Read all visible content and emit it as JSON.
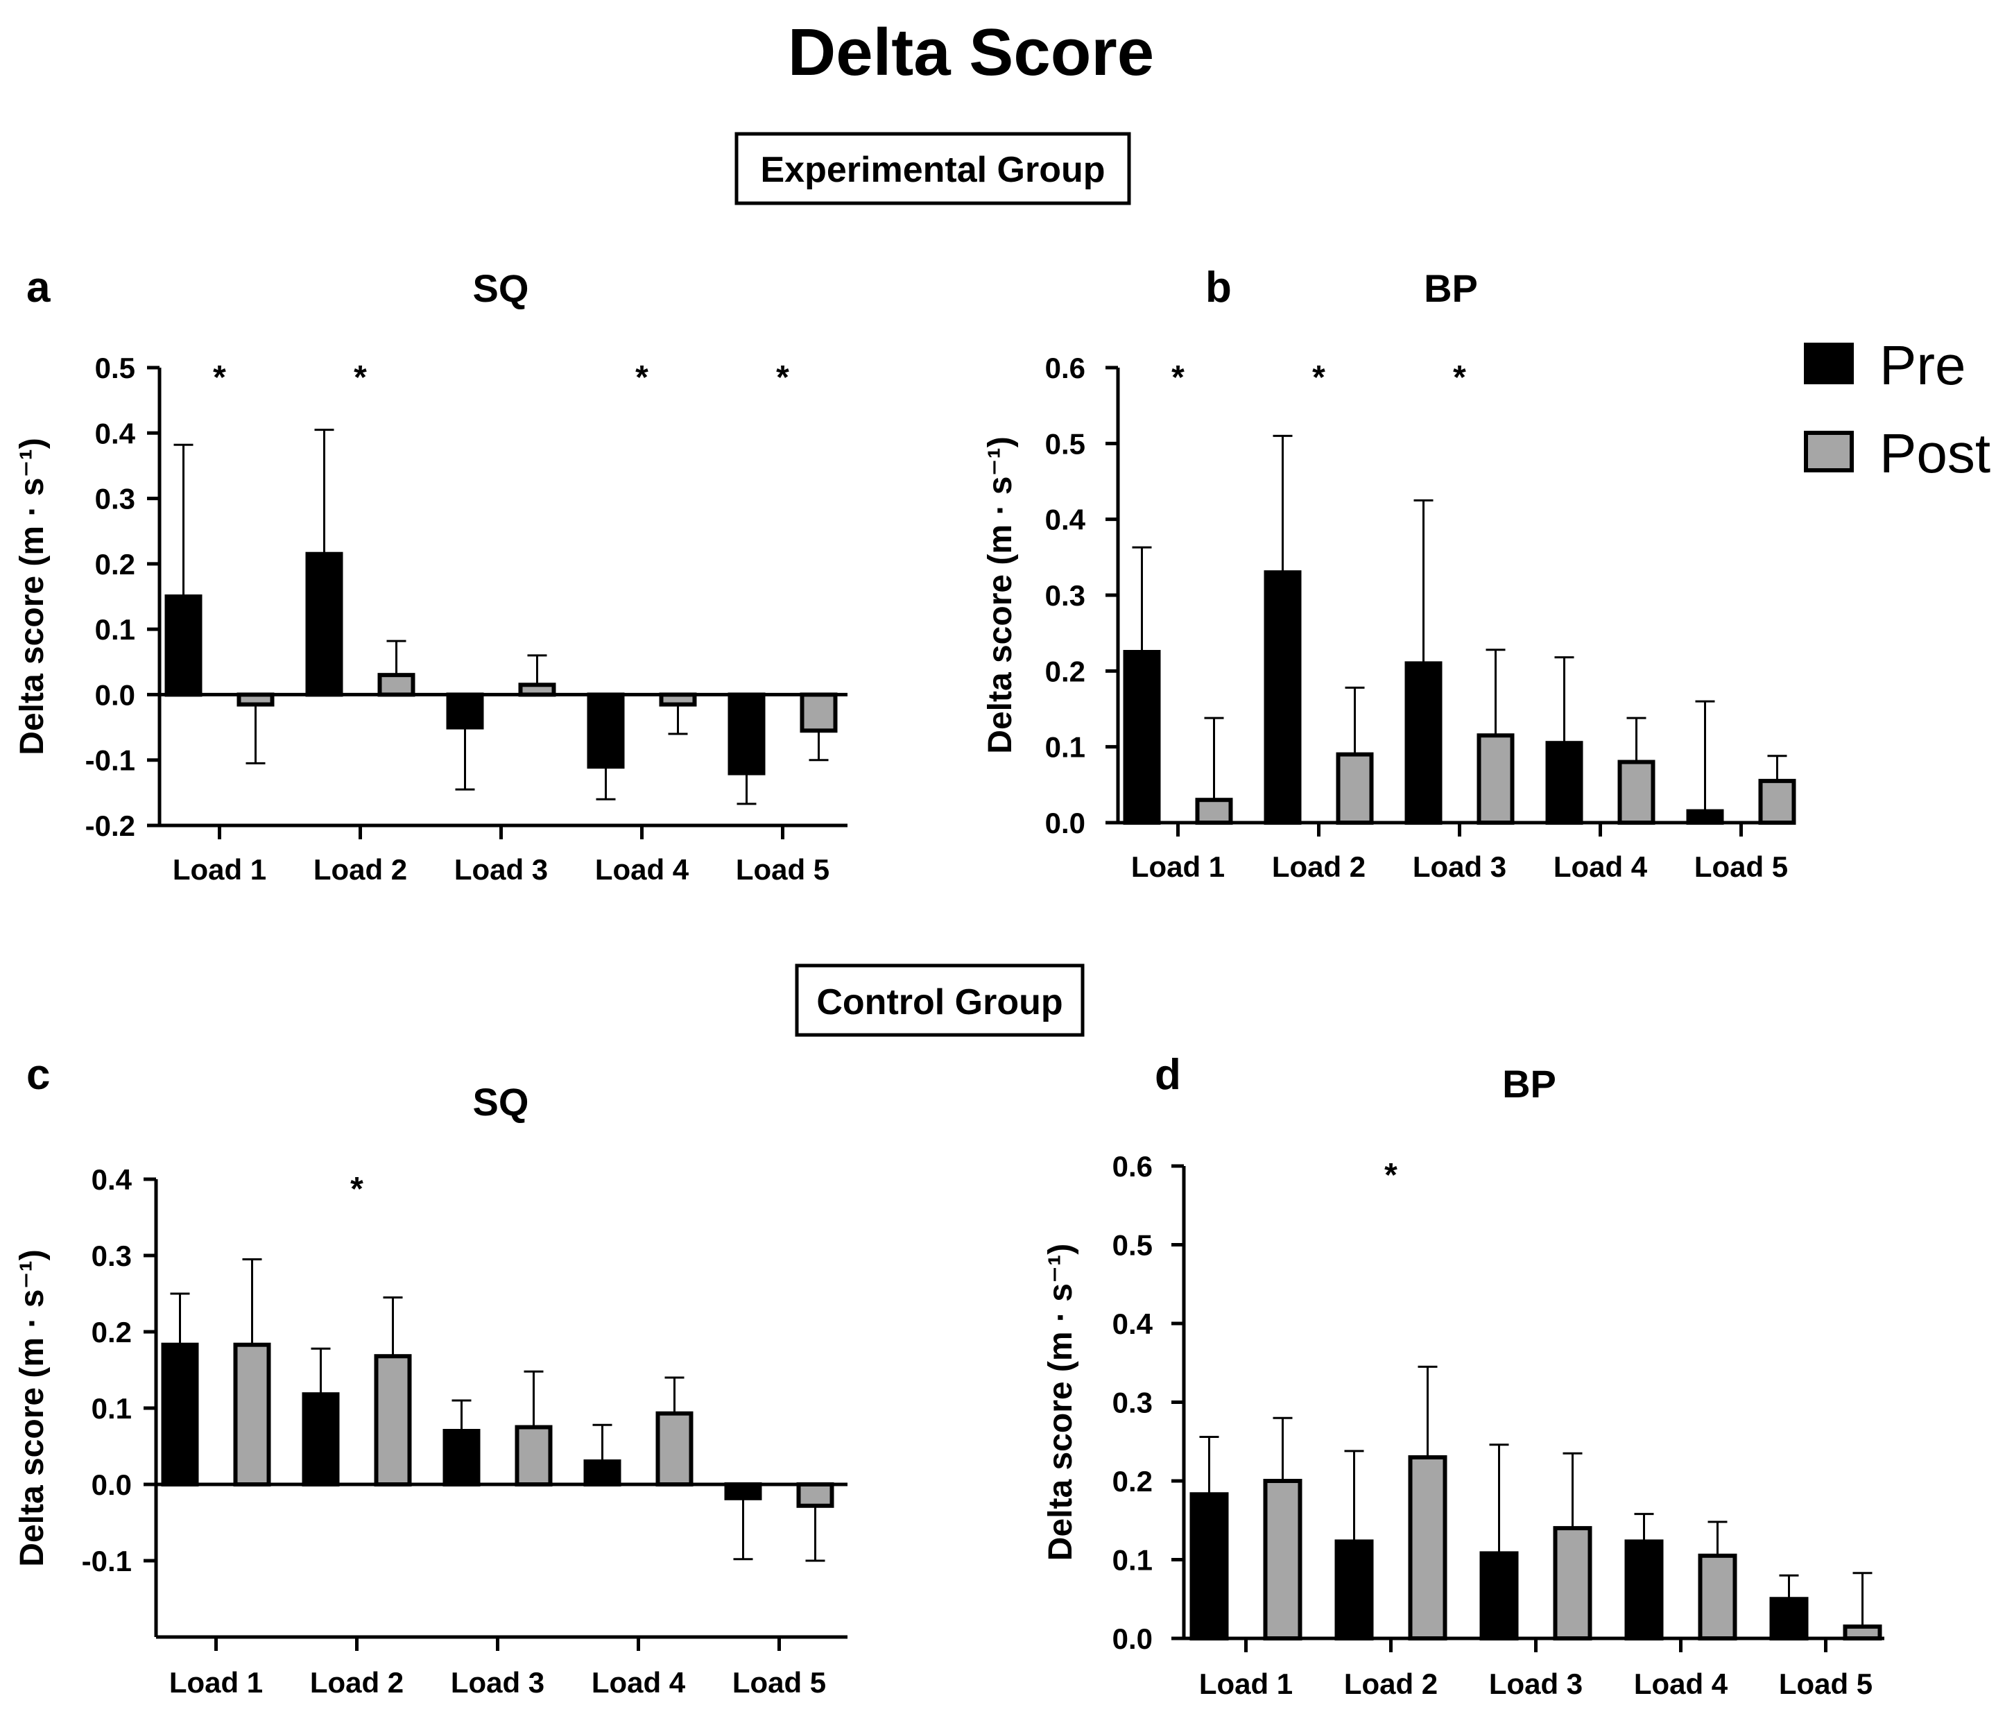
{
  "figure": {
    "title": "Delta Score",
    "group_experimental": "Experimental Group",
    "group_control": "Control Group"
  },
  "legend": [
    {
      "label": "Pre",
      "color": "#000000"
    },
    {
      "label": "Post",
      "color": "#a6a6a6"
    }
  ],
  "colors": {
    "pre": "#000000",
    "post": "#a6a6a6",
    "axis": "#000000"
  },
  "chart_data": [
    {
      "id": "a",
      "letter": "a",
      "type": "bar",
      "title": "SQ",
      "ylabel": "Delta score (m · s⁻¹)",
      "ylim": [
        -0.2,
        0.5
      ],
      "yticks": [
        -0.2,
        -0.1,
        0.0,
        0.1,
        0.2,
        0.3,
        0.4,
        0.5
      ],
      "categories": [
        "Load 1",
        "Load 2",
        "Load 3",
        "Load 4",
        "Load 5"
      ],
      "series": [
        {
          "name": "Pre",
          "values": [
            0.15,
            0.215,
            -0.05,
            -0.11,
            -0.12
          ],
          "errors": [
            0.232,
            0.19,
            0.095,
            0.05,
            0.047
          ]
        },
        {
          "name": "Post",
          "values": [
            -0.015,
            0.03,
            0.015,
            -0.015,
            -0.055
          ],
          "errors": [
            0.09,
            0.052,
            0.045,
            0.045,
            0.045
          ]
        }
      ],
      "significant": [
        true,
        true,
        false,
        true,
        true
      ],
      "marker": "*"
    },
    {
      "id": "b",
      "letter": "b",
      "type": "bar",
      "title": "BP",
      "ylabel": "Delta score (m · s⁻¹)",
      "ylim": [
        0.0,
        0.6
      ],
      "yticks": [
        0.0,
        0.1,
        0.2,
        0.3,
        0.4,
        0.5,
        0.6
      ],
      "categories": [
        "Load 1",
        "Load 2",
        "Load 3",
        "Load 4",
        "Load 5"
      ],
      "series": [
        {
          "name": "Pre",
          "values": [
            0.225,
            0.33,
            0.21,
            0.105,
            0.015
          ],
          "errors": [
            0.138,
            0.18,
            0.215,
            0.113,
            0.145
          ]
        },
        {
          "name": "Post",
          "values": [
            0.03,
            0.09,
            0.115,
            0.08,
            0.055
          ],
          "errors": [
            0.108,
            0.088,
            0.113,
            0.058,
            0.033
          ]
        }
      ],
      "significant": [
        true,
        true,
        true,
        false,
        false
      ],
      "marker": "*"
    },
    {
      "id": "c",
      "letter": "c",
      "type": "bar",
      "title": "SQ",
      "ylabel": "Delta score (m · s⁻¹)",
      "ylim": [
        -0.2,
        0.4
      ],
      "yticks": [
        -0.1,
        0.0,
        0.1,
        0.2,
        0.3,
        0.4
      ],
      "categories": [
        "Load 1",
        "Load 2",
        "Load 3",
        "Load 4",
        "Load 5"
      ],
      "series": [
        {
          "name": "Pre",
          "values": [
            0.183,
            0.118,
            0.07,
            0.03,
            -0.018
          ],
          "errors": [
            0.067,
            0.06,
            0.04,
            0.048,
            0.08
          ]
        },
        {
          "name": "Post",
          "values": [
            0.183,
            0.168,
            0.075,
            0.093,
            -0.028
          ],
          "errors": [
            0.112,
            0.077,
            0.073,
            0.047,
            0.072
          ]
        }
      ],
      "significant": [
        false,
        true,
        false,
        false,
        false
      ],
      "marker": "*"
    },
    {
      "id": "d",
      "letter": "d",
      "type": "bar",
      "title": "BP",
      "ylabel": "Delta score (m · s⁻¹)",
      "ylim": [
        0.0,
        0.6
      ],
      "yticks": [
        0.0,
        0.1,
        0.2,
        0.3,
        0.4,
        0.5,
        0.6
      ],
      "categories": [
        "Load 1",
        "Load 2",
        "Load 3",
        "Load 4",
        "Load 5"
      ],
      "series": [
        {
          "name": "Pre",
          "values": [
            0.183,
            0.123,
            0.108,
            0.123,
            0.05
          ],
          "errors": [
            0.073,
            0.115,
            0.138,
            0.035,
            0.03
          ]
        },
        {
          "name": "Post",
          "values": [
            0.2,
            0.23,
            0.14,
            0.105,
            0.015
          ],
          "errors": [
            0.08,
            0.115,
            0.095,
            0.043,
            0.068
          ]
        }
      ],
      "significant": [
        false,
        true,
        false,
        false,
        false
      ],
      "marker": "*"
    }
  ]
}
